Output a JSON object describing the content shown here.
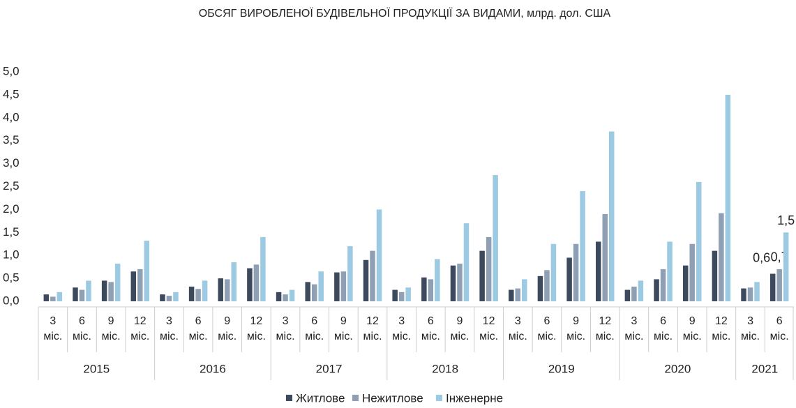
{
  "chart_data": {
    "type": "bar",
    "title": "ОБСЯГ ВИРОБЛЕНОЇ БУДІВЕЛЬНОЇ ПРОДУКЦІЇ ЗА ВИДАМИ, млрд. дол. США",
    "category_groups": [
      {
        "name": "2015",
        "categories": [
          "3 міс.",
          "6 міс.",
          "9 міс.",
          "12 міс."
        ]
      },
      {
        "name": "2016",
        "categories": [
          "3 міс.",
          "6 міс.",
          "9 міс.",
          "12 міс."
        ]
      },
      {
        "name": "2017",
        "categories": [
          "3 міс.",
          "6 міс.",
          "9 міс.",
          "12 міс."
        ]
      },
      {
        "name": "2018",
        "categories": [
          "3 міс.",
          "6 міс.",
          "9 міс.",
          "12 міс."
        ]
      },
      {
        "name": "2019",
        "categories": [
          "3 міс.",
          "6 міс.",
          "9 міс.",
          "12 міс."
        ]
      },
      {
        "name": "2020",
        "categories": [
          "3 міс.",
          "6 міс.",
          "9 міс.",
          "12 міс."
        ]
      },
      {
        "name": "2021",
        "categories": [
          "3 міс.",
          "6 міс."
        ]
      }
    ],
    "series": [
      {
        "name": "Житлове",
        "color": "#3d4a5d",
        "values": [
          0.15,
          0.3,
          0.45,
          0.65,
          0.15,
          0.32,
          0.5,
          0.72,
          0.2,
          0.42,
          0.63,
          0.9,
          0.25,
          0.52,
          0.78,
          1.1,
          0.25,
          0.55,
          0.95,
          1.3,
          0.25,
          0.48,
          0.78,
          1.1,
          0.28,
          0.6
        ],
        "value_labels": [
          null,
          null,
          null,
          null,
          null,
          null,
          null,
          null,
          null,
          null,
          null,
          null,
          null,
          null,
          null,
          null,
          null,
          null,
          null,
          null,
          null,
          null,
          null,
          null,
          null,
          "0,6"
        ]
      },
      {
        "name": "Нежитлове",
        "color": "#8fa0b4",
        "values": [
          0.1,
          0.25,
          0.42,
          0.7,
          0.12,
          0.27,
          0.48,
          0.8,
          0.15,
          0.37,
          0.65,
          1.1,
          0.2,
          0.48,
          0.82,
          1.4,
          0.28,
          0.68,
          1.25,
          1.9,
          0.32,
          0.7,
          1.25,
          1.92,
          0.3,
          0.7
        ],
        "value_labels": [
          null,
          null,
          null,
          null,
          null,
          null,
          null,
          null,
          null,
          null,
          null,
          null,
          null,
          null,
          null,
          null,
          null,
          null,
          null,
          null,
          null,
          null,
          null,
          null,
          null,
          "0,7"
        ]
      },
      {
        "name": "Інженерне",
        "color": "#9ccae2",
        "values": [
          0.2,
          0.45,
          0.82,
          1.32,
          0.2,
          0.45,
          0.85,
          1.4,
          0.25,
          0.65,
          1.2,
          2.0,
          0.3,
          0.92,
          1.7,
          2.75,
          0.48,
          1.25,
          2.4,
          3.7,
          0.45,
          1.3,
          2.6,
          4.5,
          0.42,
          1.5
        ],
        "value_labels": [
          null,
          null,
          null,
          null,
          null,
          null,
          null,
          null,
          null,
          null,
          null,
          null,
          null,
          null,
          null,
          null,
          null,
          null,
          null,
          null,
          null,
          null,
          null,
          null,
          null,
          "1,5"
        ]
      }
    ],
    "ylim": [
      0,
      5
    ],
    "yticks": [
      {
        "value": 0,
        "label": "0,0"
      },
      {
        "value": 0.5,
        "label": "0,5"
      },
      {
        "value": 1,
        "label": "1,0"
      },
      {
        "value": 1.5,
        "label": "1,5"
      },
      {
        "value": 2,
        "label": "2,0"
      },
      {
        "value": 2.5,
        "label": "2,5"
      },
      {
        "value": 3,
        "label": "3,0"
      },
      {
        "value": 3.5,
        "label": "3,5"
      },
      {
        "value": 4,
        "label": "4,0"
      },
      {
        "value": 4.5,
        "label": "4,5"
      },
      {
        "value": 5,
        "label": "5,0"
      }
    ],
    "grid": false
  }
}
